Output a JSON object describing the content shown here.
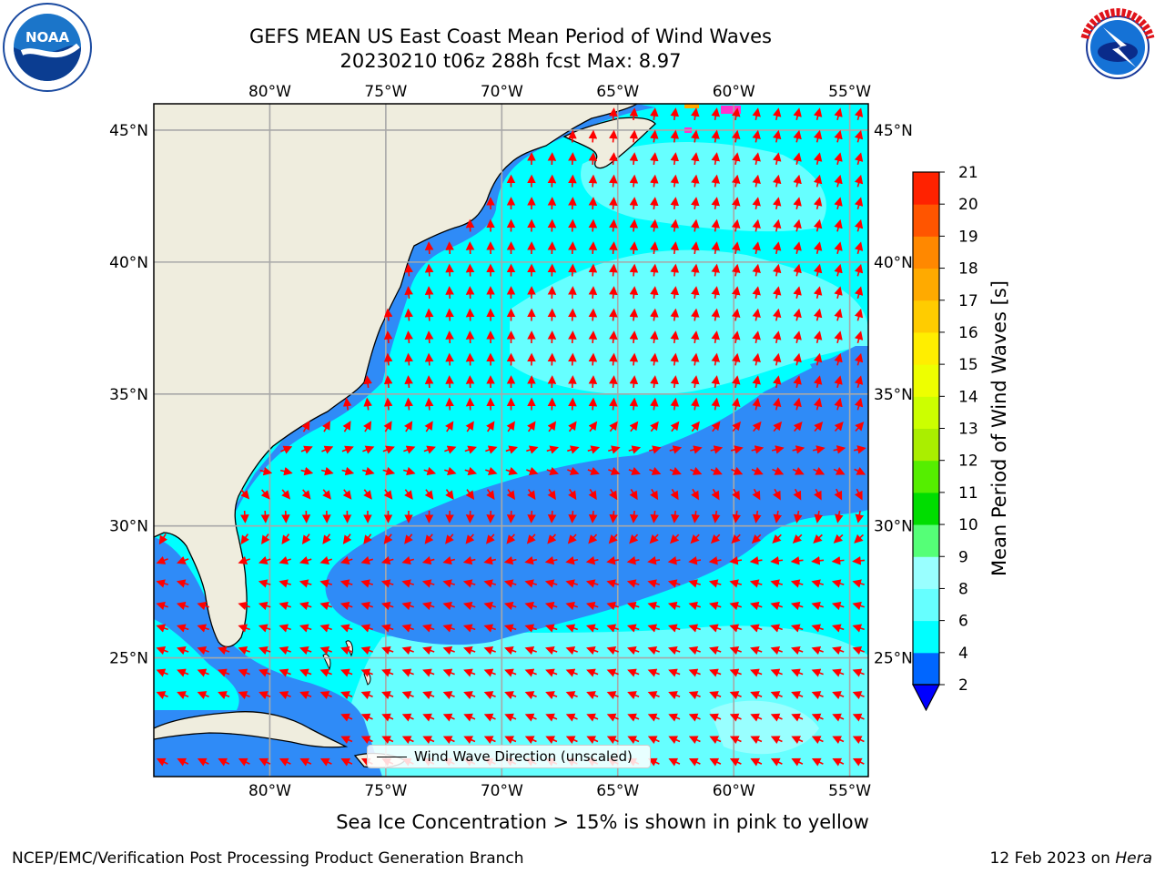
{
  "header": {
    "title_line1": "GEFS MEAN US East Coast Mean Period of Wind Waves",
    "title_line2": "20230210 t06z 288h fcst   Max: 8.97"
  },
  "logos": {
    "noaa": {
      "icon": "noaa-logo",
      "text": "NOAA",
      "ring_text": "NATIONAL OCEANIC AND ATMOSPHERIC ADMINISTRATION · U.S. DEPARTMENT OF COMMERCE"
    },
    "nws": {
      "icon": "nws-logo",
      "ring_text": "NATIONAL WEATHER SERVICE"
    }
  },
  "map": {
    "lon_ticks": [
      "80°W",
      "75°W",
      "70°W",
      "65°W",
      "60°W",
      "55°W"
    ],
    "lat_ticks": [
      "45°N",
      "40°N",
      "35°N",
      "30°N",
      "25°N"
    ],
    "lon_values": [
      -80,
      -75,
      -70,
      -65,
      -60,
      -55
    ],
    "lat_values": [
      45,
      40,
      35,
      30,
      25
    ],
    "extent": {
      "lon": [
        -85,
        -54.2
      ],
      "lat": [
        20.5,
        46
      ]
    },
    "colors": {
      "land": "#efedde",
      "period_2_4": "#2f8bf7",
      "period_4_6": "#00ffff",
      "period_6_8": "#66ffff",
      "period_8_9": "#99ffff",
      "arrows": "#ff0000",
      "grid": "#a8a8a8",
      "coast": "#000000"
    },
    "legend_label": "Wind Wave Direction (unscaled)"
  },
  "colorbar": {
    "label": "Mean Period of Wind Waves [s]",
    "ticks": [
      "2",
      "4",
      "6",
      "8",
      "9",
      "10",
      "11",
      "12",
      "13",
      "14",
      "15",
      "16",
      "17",
      "18",
      "19",
      "20",
      "21"
    ],
    "colors": [
      "#0000ff",
      "#0066ff",
      "#00ffff",
      "#66ffff",
      "#99ffff",
      "#55ff77",
      "#00dd00",
      "#55ee00",
      "#aaee00",
      "#ccff00",
      "#eeff00",
      "#ffee00",
      "#ffcc00",
      "#ffaa00",
      "#ff8800",
      "#ff5500",
      "#ff2200",
      "#ff0000"
    ]
  },
  "footer": {
    "note": "Sea Ice Concentration > 15% is shown in pink to yellow",
    "left": "NCEP/EMC/Verification Post Processing Product Generation Branch",
    "date": "12 Feb 2023 on",
    "machine": "Hera"
  }
}
